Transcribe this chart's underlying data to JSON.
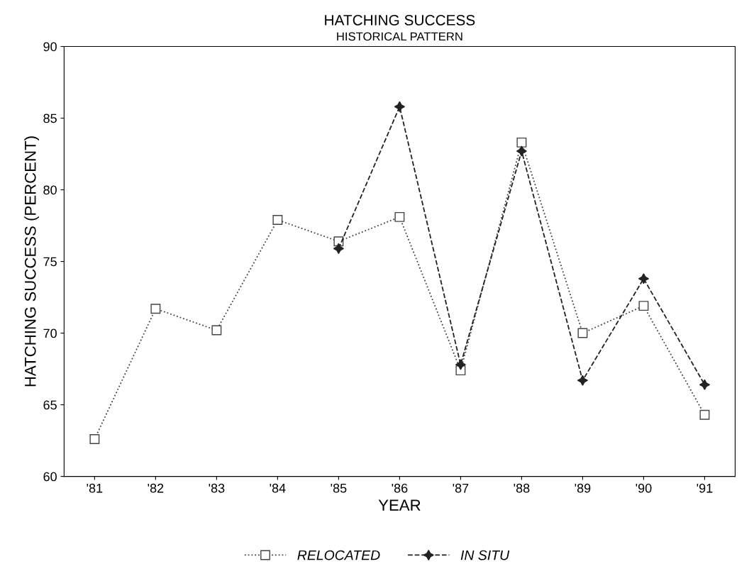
{
  "chart_data": {
    "type": "line",
    "title": "HATCHING SUCCESS",
    "subtitle": "HISTORICAL PATTERN",
    "xlabel": "YEAR",
    "ylabel": "HATCHING SUCCESS (PERCENT)",
    "categories": [
      "'81",
      "'82",
      "'83",
      "'84",
      "'85",
      "'86",
      "'87",
      "'88",
      "'89",
      "'90",
      "'91"
    ],
    "series": [
      {
        "name": "RELOCATED",
        "color": "#444444",
        "marker": "square",
        "line_style": "dotted",
        "values": [
          62.6,
          71.7,
          70.2,
          77.9,
          76.4,
          78.1,
          67.4,
          83.3,
          70.0,
          71.9,
          64.3
        ]
      },
      {
        "name": "IN SITU",
        "color": "#222222",
        "marker": "star",
        "line_style": "dashed",
        "values": [
          null,
          null,
          null,
          null,
          75.9,
          85.8,
          67.8,
          82.7,
          66.7,
          73.8,
          66.4
        ]
      }
    ],
    "ylim": [
      60,
      90
    ],
    "yticks": [
      60,
      65,
      70,
      75,
      80,
      85,
      90
    ],
    "grid": false,
    "legend": "bottom"
  }
}
